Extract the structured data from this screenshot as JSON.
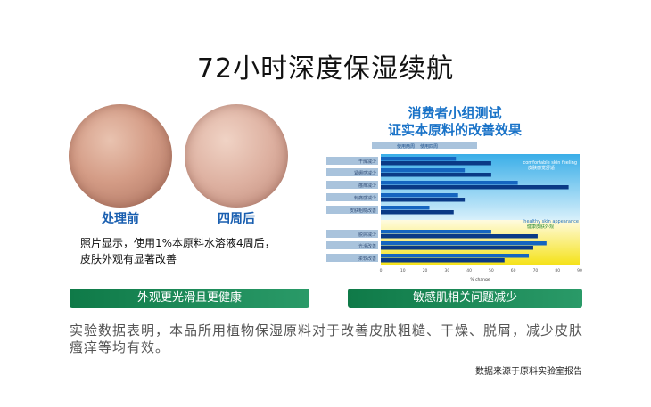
{
  "title": "72小时深度保湿续航",
  "photos": [
    {
      "label": "处理前"
    },
    {
      "label": "四周后"
    }
  ],
  "caption": [
    "照片显示，使用1%本原料水溶液4周后，",
    "皮肤外观有显著改善"
  ],
  "chart_title": [
    "消费者小组测试",
    "证实本原料的改善效果"
  ],
  "chart_data": {
    "type": "bar",
    "orientation": "horizontal",
    "legend": [
      "使用两周",
      "使用四周"
    ],
    "legend_placement": "top",
    "categories": [
      "干燥减少",
      "紧绷感减少",
      "瘙痒减少",
      "刺痛感减少",
      "皮肤粗糙改善",
      "脱屑减少",
      "光滑改善",
      "柔软改善"
    ],
    "series": [
      {
        "name": "使用两周",
        "values": [
          34,
          38,
          62,
          35,
          22,
          50,
          75,
          67
        ],
        "color": "#1565c0"
      },
      {
        "name": "使用四周",
        "values": [
          50,
          50,
          85,
          38,
          33,
          71,
          69,
          56
        ],
        "color": "#0a3a86"
      }
    ],
    "groups": [
      {
        "en": "comfortable skin feeling",
        "zh": "皮肤感觉舒适"
      },
      {
        "en": "healthy skin appearance",
        "zh": "健康皮肤外观"
      }
    ],
    "xticks": [
      0,
      10,
      20,
      30,
      40,
      50,
      60,
      70,
      80,
      90
    ],
    "xlim": [
      0,
      90
    ],
    "xlabel": "% change"
  },
  "buttons": [
    "外观更光滑且更健康",
    "敏感肌相关问题减少"
  ],
  "body_text": "实验数据表明，本品所用植物保湿原料对于改善皮肤粗糙、干燥、脱屑，减少皮肤瘙痒等均有效。",
  "source": "数据来源于原料实验室报告"
}
